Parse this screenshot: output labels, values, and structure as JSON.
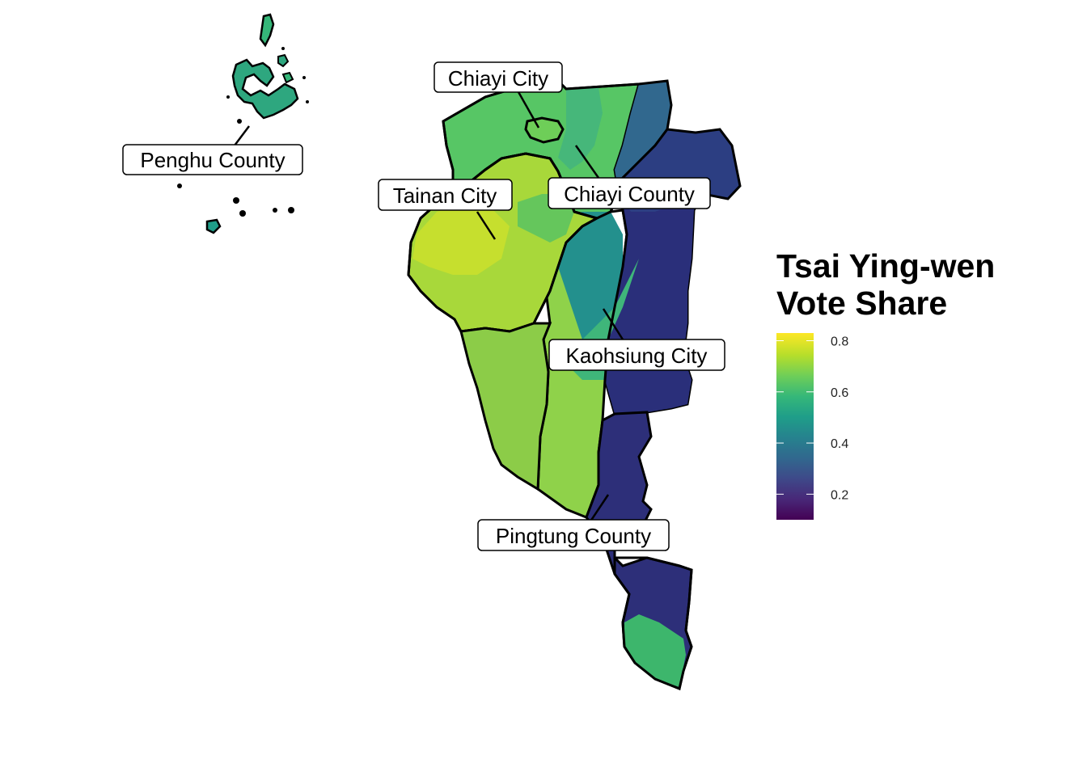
{
  "legend": {
    "title_line1": "Tsai Ying-wen",
    "title_line2": "Vote Share",
    "ticks": [
      "0.2",
      "0.4",
      "0.6",
      "0.8"
    ],
    "tick_values": [
      0.2,
      0.4,
      0.6,
      0.8
    ],
    "range": [
      0.1,
      0.83
    ],
    "colors": [
      "#440154",
      "#482878",
      "#3e4989",
      "#31688e",
      "#26828e",
      "#1f9e89",
      "#35b779",
      "#6ece58",
      "#b5de2b",
      "#fde725"
    ]
  },
  "labels": {
    "penghu": "Penghu County",
    "chiayi_city": "Chiayi City",
    "tainan": "Tainan City",
    "chiayi_county": "Chiayi County",
    "kaohsiung": "Kaohsiung City",
    "pingtung": "Pingtung County"
  },
  "colors": {
    "border": "#000000",
    "background": "#ffffff"
  }
}
